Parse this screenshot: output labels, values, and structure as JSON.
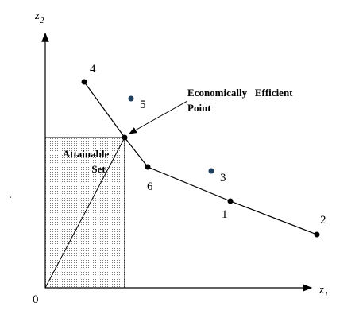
{
  "axes": {
    "y_label": {
      "base": "z",
      "sub": "2"
    },
    "x_label": {
      "base": "z",
      "sub": "1"
    },
    "origin": "0"
  },
  "region": {
    "label_line1": "Attainable",
    "label_line2": "Set"
  },
  "annotation": {
    "line1": "Economically   Efficient",
    "line2": "Point"
  },
  "points": [
    {
      "label": "1"
    },
    {
      "label": "2"
    },
    {
      "label": "3"
    },
    {
      "label": "4"
    },
    {
      "label": "5"
    },
    {
      "label": "6"
    }
  ],
  "stray_mark": "."
}
